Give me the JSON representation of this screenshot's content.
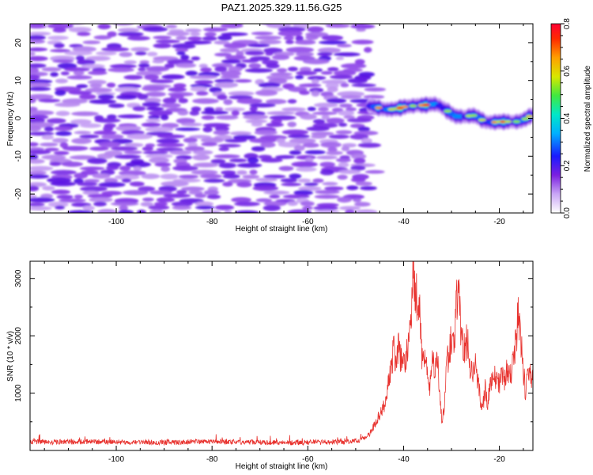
{
  "title": "PAZ1.2025.329.11.56.G25",
  "chart_data": [
    {
      "type": "heatmap",
      "xlabel": "Height of straight line (km)",
      "ylabel": "Frequency (Hz)",
      "xlim": [
        -118,
        -13
      ],
      "ylim": [
        -25,
        25
      ],
      "xticks": [
        -100,
        -80,
        -60,
        -40,
        -20
      ],
      "yticks": [
        -20,
        -10,
        0,
        10,
        20
      ],
      "noise_region_x": [
        -118,
        -48
      ],
      "ridge": {
        "x": [
          -47,
          -45,
          -43,
          -41,
          -39,
          -37,
          -35,
          -33,
          -31,
          -29,
          -27,
          -25,
          -23,
          -21,
          -19,
          -17,
          -15,
          -13
        ],
        "frequency": [
          3,
          2.8,
          2.6,
          2.4,
          3,
          3.8,
          3.6,
          3.4,
          2.2,
          0.8,
          0.2,
          0.6,
          -0.6,
          -1,
          -1.2,
          -0.8,
          -0.2,
          0.8
        ],
        "amplitude": [
          0.45,
          0.62,
          0.7,
          0.78,
          0.68,
          0.66,
          0.74,
          0.58,
          0.5,
          0.6,
          0.66,
          0.55,
          0.6,
          0.68,
          0.7,
          0.64,
          0.6,
          0.55
        ]
      },
      "colorbar": {
        "label": "Normalized spectral amplitude",
        "range": [
          0,
          0.8
        ],
        "ticks": [
          "0.0",
          "0.2",
          "0.4",
          "0.6",
          "0.8"
        ]
      }
    },
    {
      "type": "line",
      "xlabel": "Height of straight line (km)",
      "ylabel": "SNR (10 * v/v)",
      "xlim": [
        -118,
        -13
      ],
      "ylim": [
        0,
        3300
      ],
      "xticks": [
        -100,
        -80,
        -60,
        -40,
        -20
      ],
      "yticks": [
        1000,
        2000,
        3000
      ],
      "series": [
        {
          "name": "SNR",
          "color": "#e8332f",
          "x": [
            -118,
            -110,
            -100,
            -90,
            -80,
            -70,
            -60,
            -52,
            -49,
            -47,
            -46,
            -45,
            -44,
            -43,
            -42.5,
            -42,
            -41.5,
            -41,
            -40.5,
            -40,
            -39.5,
            -39,
            -38.5,
            -38,
            -37.5,
            -37,
            -36.5,
            -36,
            -35.5,
            -35,
            -34.5,
            -34,
            -33.5,
            -33,
            -32.5,
            -32,
            -31.5,
            -31,
            -30.5,
            -30,
            -29.5,
            -29,
            -28.5,
            -28,
            -27.5,
            -27,
            -26.5,
            -26,
            -25.5,
            -25,
            -24.5,
            -24,
            -23.5,
            -23,
            -22.5,
            -22,
            -21.5,
            -21,
            -20.5,
            -20,
            -19.5,
            -19,
            -18.5,
            -18,
            -17.5,
            -17,
            -16.5,
            -16,
            -15.5,
            -15,
            -14.5,
            -14,
            -13.5,
            -13
          ],
          "values": [
            150,
            150,
            150,
            140,
            150,
            140,
            140,
            150,
            180,
            300,
            460,
            620,
            820,
            1200,
            1550,
            1750,
            1450,
            1900,
            1500,
            1700,
            1550,
            1950,
            2100,
            3250,
            2500,
            2850,
            2300,
            1400,
            1800,
            1200,
            1100,
            1600,
            1300,
            1700,
            1000,
            500,
            700,
            1500,
            1700,
            2000,
            1800,
            2600,
            2750,
            2100,
            1700,
            1900,
            1800,
            1300,
            1400,
            1500,
            1200,
            900,
            700,
            1100,
            800,
            1050,
            1200,
            1300,
            1150,
            1200,
            1300,
            1200,
            1350,
            1400,
            1350,
            1700,
            1900,
            2450,
            1900,
            1400,
            950,
            1500,
            1400,
            1200
          ]
        }
      ]
    }
  ]
}
